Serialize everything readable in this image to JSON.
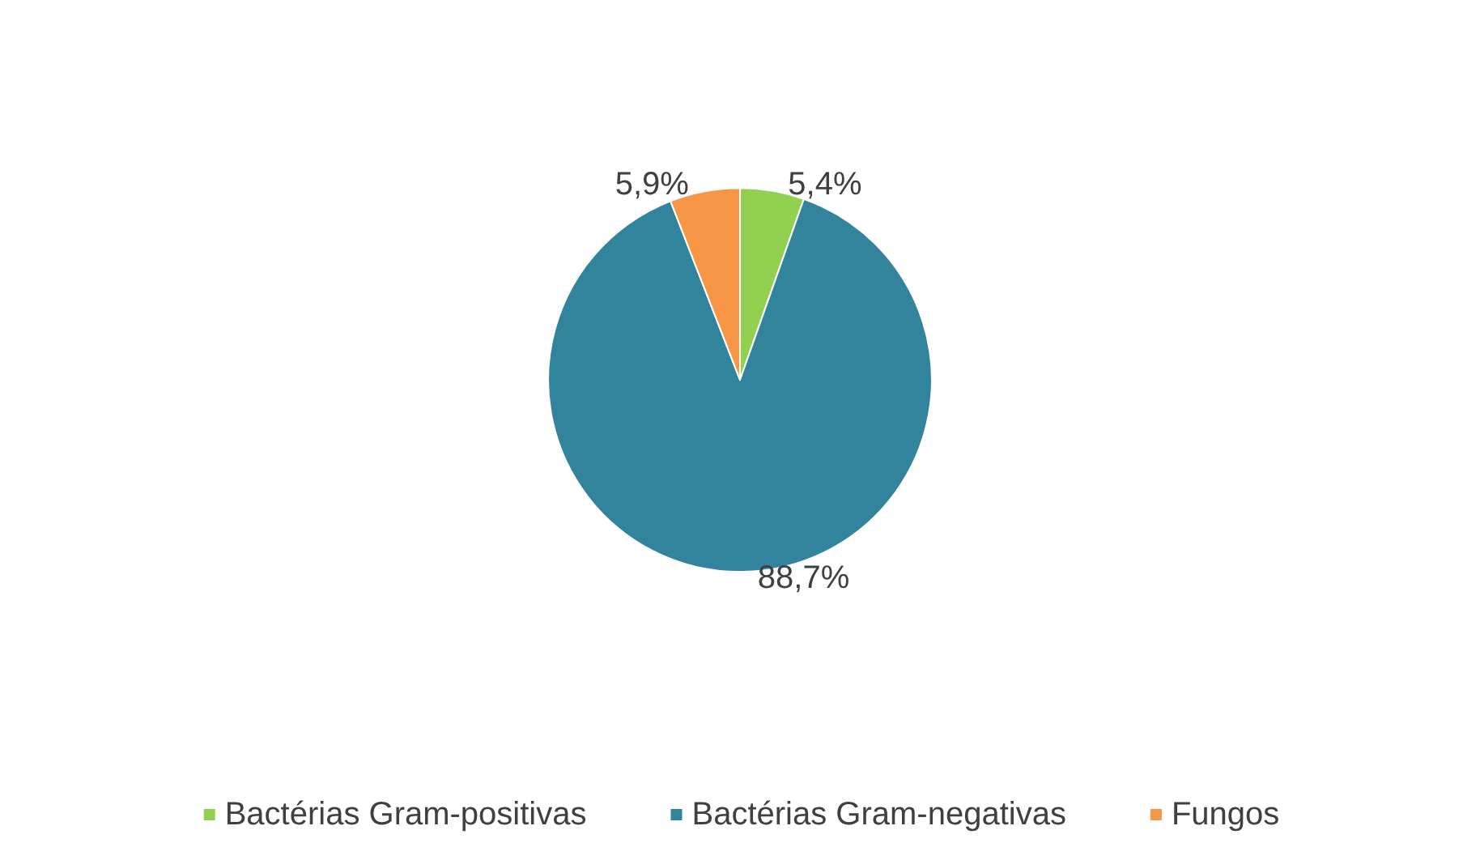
{
  "chart_data": {
    "type": "pie",
    "categories": [
      "Bactérias Gram-positivas",
      "Bactérias Gram-negativas",
      "Fungos"
    ],
    "values": [
      5.4,
      88.7,
      5.9
    ],
    "colors": [
      "#92d050",
      "#31849b",
      "#f79646"
    ],
    "value_labels": [
      "5,4%",
      "88,7%",
      "5,9%"
    ],
    "legend": "bottom"
  }
}
